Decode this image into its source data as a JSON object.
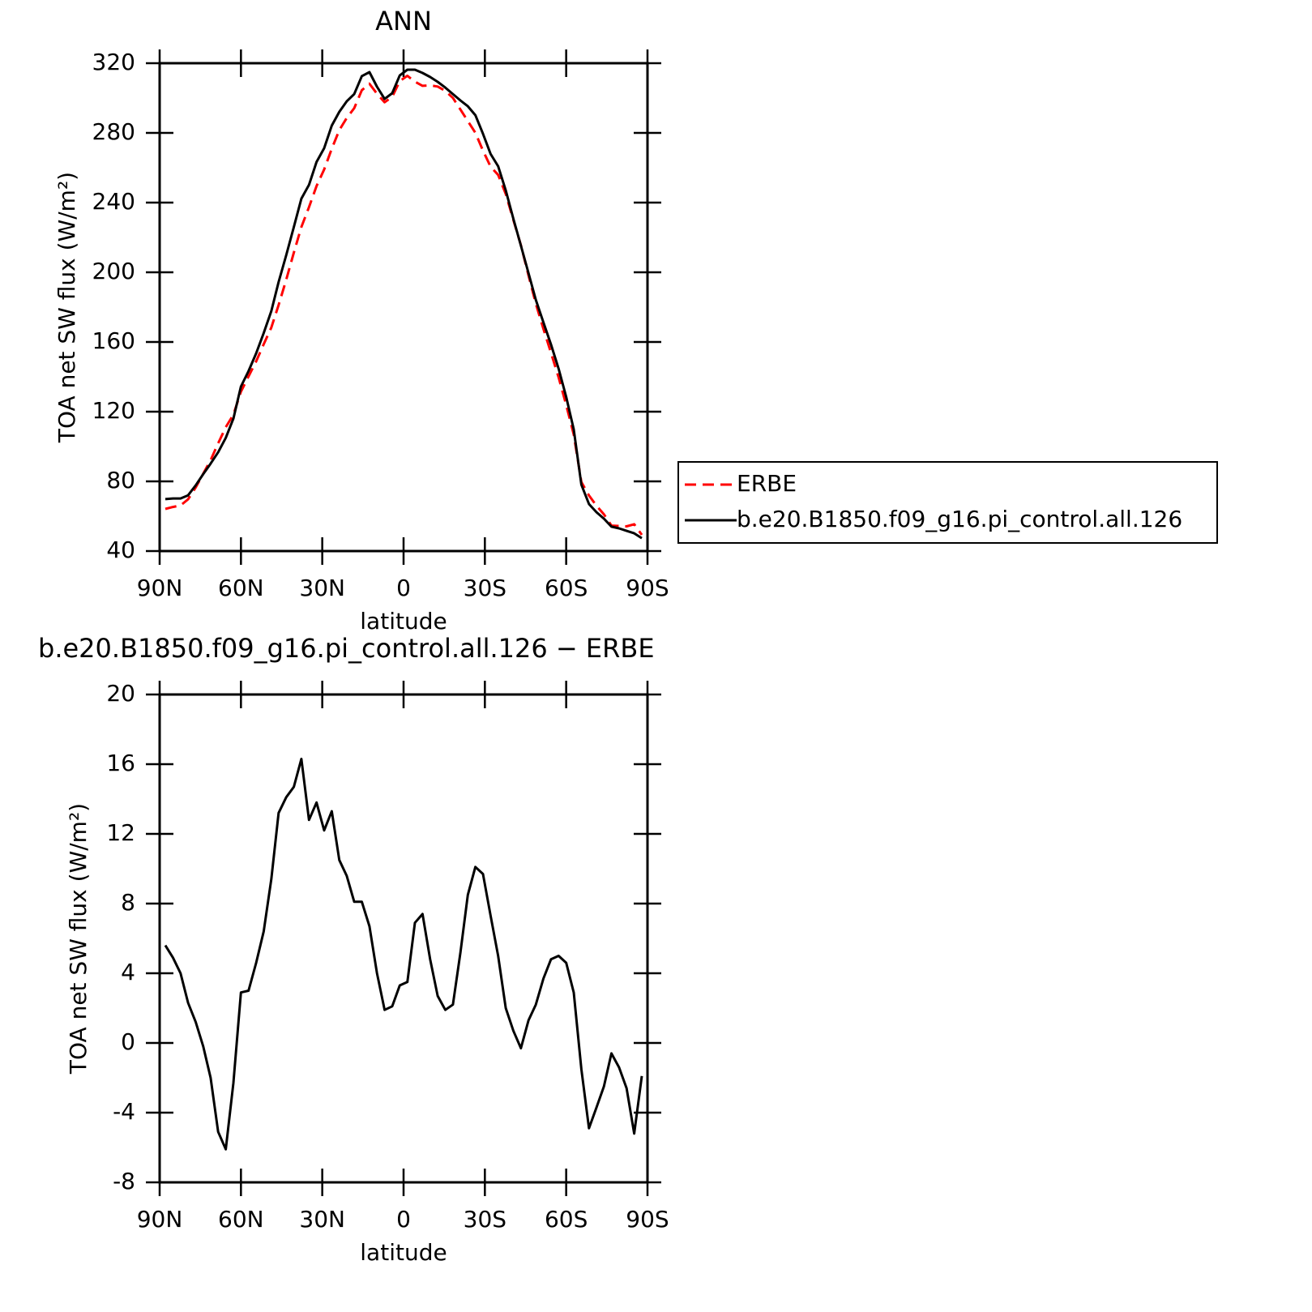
{
  "chart_data": [
    {
      "type": "line",
      "title": "ANN",
      "xlabel": "latitude",
      "ylabel": "TOA net SW flux (W/m²)",
      "x": [
        87.9,
        85.1,
        82.3,
        79.5,
        76.7,
        73.9,
        71.2,
        68.4,
        65.6,
        62.8,
        60.0,
        57.2,
        54.4,
        51.6,
        48.8,
        46.1,
        43.3,
        40.5,
        37.7,
        34.9,
        32.1,
        29.3,
        26.5,
        23.7,
        21.0,
        18.2,
        15.4,
        12.6,
        9.8,
        7.0,
        4.2,
        1.4,
        -1.4,
        -4.2,
        -7.0,
        -9.8,
        -12.6,
        -15.4,
        -18.2,
        -21.0,
        -23.7,
        -26.5,
        -29.3,
        -32.1,
        -34.9,
        -37.7,
        -40.5,
        -43.3,
        -46.1,
        -48.8,
        -51.6,
        -54.4,
        -57.2,
        -60.0,
        -62.8,
        -65.6,
        -68.4,
        -71.2,
        -73.9,
        -76.7,
        -79.5,
        -82.3,
        -85.1,
        -87.9
      ],
      "series": [
        {
          "name": "ERBE",
          "color": "#ff0000",
          "linestyle": "dashed",
          "values": [
            64.2,
            65.3,
            66.2,
            69.7,
            76.5,
            84.4,
            92.2,
            101.8,
            111.1,
            118.3,
            131.5,
            140.3,
            148.9,
            158.7,
            168.3,
            181.2,
            195.7,
            211.3,
            226.0,
            237.4,
            249.5,
            259.0,
            270.9,
            281.6,
            288.5,
            294.2,
            304.5,
            308.2,
            302.5,
            297.6,
            300.7,
            309.7,
            312.8,
            309.4,
            307.0,
            307.3,
            306.6,
            304.1,
            300.1,
            293.4,
            286.8,
            280.1,
            269.8,
            260.6,
            255.9,
            245.0,
            230.0,
            215.6,
            198.2,
            182.0,
            167.5,
            153.8,
            139.7,
            123.8,
            106.9,
            79.6,
            71.9,
            66.0,
            61.1,
            54.6,
            54.4,
            54.2,
            55.4,
            49.3
          ]
        },
        {
          "name": "b.e20.B1850.f09_g16.pi_control.all.126",
          "color": "#000000",
          "linestyle": "solid",
          "values": [
            69.8,
            70.2,
            70.2,
            72.0,
            77.7,
            84.2,
            90.2,
            96.7,
            105.0,
            116.0,
            134.4,
            143.3,
            153.5,
            165.1,
            177.7,
            194.4,
            209.8,
            226.0,
            242.3,
            250.2,
            263.3,
            271.2,
            284.2,
            292.1,
            298.1,
            302.3,
            312.6,
            314.9,
            306.5,
            299.5,
            302.8,
            313.0,
            316.3,
            316.3,
            314.4,
            312.1,
            309.3,
            306.0,
            302.3,
            298.6,
            295.3,
            290.2,
            279.5,
            267.9,
            260.9,
            247.0,
            230.7,
            215.3,
            199.5,
            184.2,
            171.2,
            158.6,
            144.7,
            128.4,
            109.8,
            78.1,
            67.0,
            62.3,
            58.6,
            54.0,
            53.0,
            51.6,
            50.2,
            47.4
          ]
        }
      ],
      "xlim": [
        90,
        -90
      ],
      "xticks": [
        {
          "value": 90,
          "label": "90N"
        },
        {
          "value": 60,
          "label": "60N"
        },
        {
          "value": 30,
          "label": "30N"
        },
        0,
        {
          "value": -30,
          "label": "30S"
        },
        {
          "value": -60,
          "label": "60S"
        },
        {
          "value": -90,
          "label": "90S"
        }
      ],
      "ylim": [
        40,
        320
      ],
      "yticks": [
        40,
        80,
        120,
        160,
        200,
        240,
        280,
        320
      ],
      "legend": "right"
    },
    {
      "type": "line",
      "title": "b.e20.B1850.f09_g16.pi_control.all.126 − ERBE",
      "xlabel": "latitude",
      "ylabel": "TOA net SW flux (W/m²)",
      "x": [
        87.9,
        85.1,
        82.3,
        79.5,
        76.7,
        73.9,
        71.2,
        68.4,
        65.6,
        62.8,
        60.0,
        57.2,
        54.4,
        51.6,
        48.8,
        46.1,
        43.3,
        40.5,
        37.7,
        34.9,
        32.1,
        29.3,
        26.5,
        23.7,
        21.0,
        18.2,
        15.4,
        12.6,
        9.8,
        7.0,
        4.2,
        1.4,
        -1.4,
        -4.2,
        -7.0,
        -9.8,
        -12.6,
        -15.4,
        -18.2,
        -21.0,
        -23.7,
        -26.5,
        -29.3,
        -32.1,
        -34.9,
        -37.7,
        -40.5,
        -43.3,
        -46.1,
        -48.8,
        -51.6,
        -54.4,
        -57.2,
        -60.0,
        -62.8,
        -65.6,
        -68.4,
        -71.2,
        -73.9,
        -76.7,
        -79.5,
        -82.3,
        -85.1,
        -87.9
      ],
      "series": [
        {
          "color": "#000000",
          "linestyle": "solid",
          "values": [
            5.6,
            4.9,
            4.0,
            2.3,
            1.2,
            -0.2,
            -2.0,
            -5.1,
            -6.1,
            -2.3,
            2.9,
            3.0,
            4.6,
            6.4,
            9.4,
            13.2,
            14.1,
            14.7,
            16.3,
            12.8,
            13.8,
            12.2,
            13.3,
            10.5,
            9.6,
            8.1,
            8.1,
            6.7,
            4.0,
            1.9,
            2.1,
            3.3,
            3.5,
            6.9,
            7.4,
            4.8,
            2.7,
            1.9,
            2.2,
            5.2,
            8.5,
            10.1,
            9.7,
            7.3,
            5.0,
            2.0,
            0.7,
            -0.3,
            1.3,
            2.2,
            3.7,
            4.8,
            5.0,
            4.6,
            2.9,
            -1.5,
            -4.9,
            -3.7,
            -2.5,
            -0.6,
            -1.4,
            -2.6,
            -5.2,
            -1.9
          ]
        }
      ],
      "xlim": [
        90,
        -90
      ],
      "xticks": [
        {
          "value": 90,
          "label": "90N"
        },
        {
          "value": 60,
          "label": "60N"
        },
        {
          "value": 30,
          "label": "30N"
        },
        0,
        {
          "value": -30,
          "label": "30S"
        },
        {
          "value": -60,
          "label": "60S"
        },
        {
          "value": -90,
          "label": "90S"
        }
      ],
      "ylim": [
        -8,
        20
      ],
      "yticks": [
        -8,
        -4,
        0,
        4,
        8,
        12,
        16,
        20
      ]
    }
  ]
}
